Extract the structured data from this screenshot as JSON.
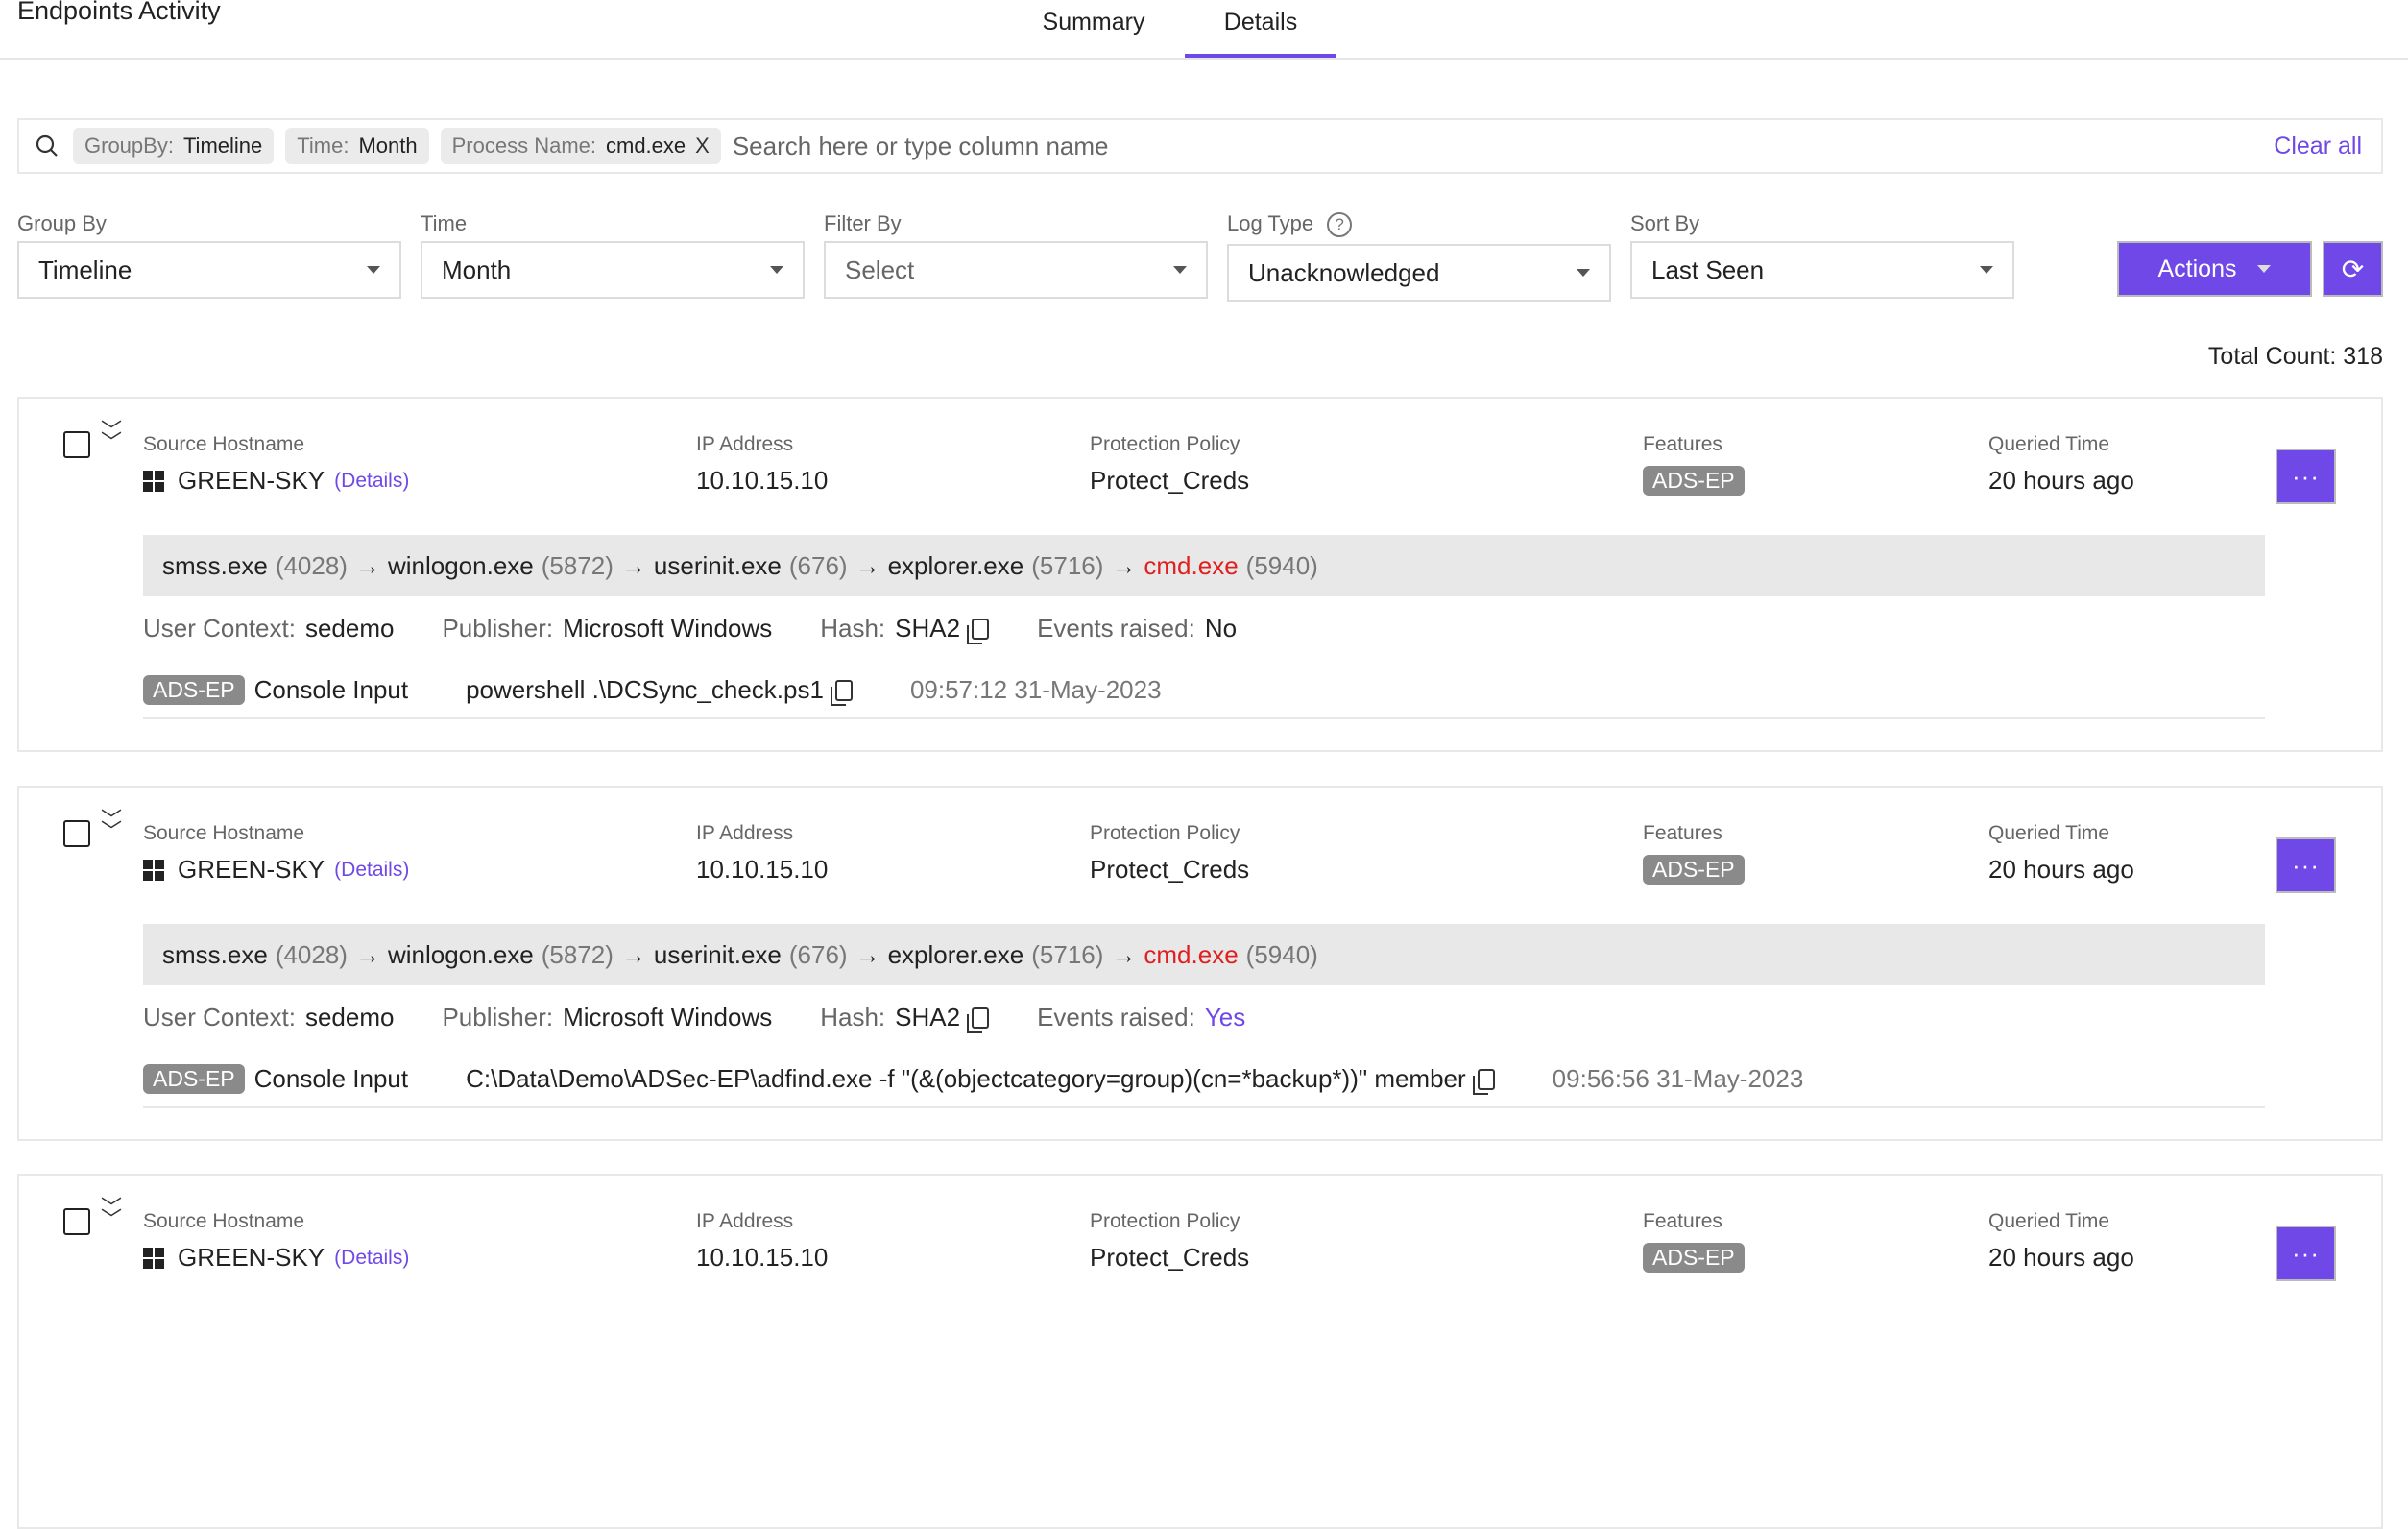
{
  "header": {
    "title": "Endpoints Activity",
    "tabs": [
      {
        "label": "Summary",
        "active": false
      },
      {
        "label": "Details",
        "active": true
      }
    ]
  },
  "search": {
    "chips": [
      {
        "key": "GroupBy:",
        "value": "Timeline"
      },
      {
        "key": "Time:",
        "value": "Month"
      },
      {
        "key": "Process Name:",
        "value": "cmd.exe",
        "removable": true
      }
    ],
    "placeholder": "Search here or type column name",
    "clear_label": "Clear all",
    "remove_glyph": "X"
  },
  "filters": [
    {
      "label": "Group By",
      "value": "Timeline"
    },
    {
      "label": "Time",
      "value": "Month"
    },
    {
      "label": "Filter By",
      "value": "Select"
    },
    {
      "label": "Log Type",
      "value": "Unacknowledged",
      "help": "?"
    },
    {
      "label": "Sort By",
      "value": "Last Seen"
    }
  ],
  "toolbar": {
    "actions_label": "Actions",
    "refresh_icon": "refresh-icon",
    "refresh_glyph": "⟳"
  },
  "total_count": "Total Count: 318",
  "accent": "#7048e8",
  "columns": {
    "hostname": "Source Hostname",
    "ip": "IP Address",
    "policy": "Protection Policy",
    "features": "Features",
    "queried": "Queried Time",
    "details_link": "(Details)",
    "more": "···"
  },
  "detail_labels": {
    "user": "User Context:",
    "publisher": "Publisher:",
    "hash": "Hash:",
    "events": "Events raised:"
  },
  "cards": [
    {
      "hostname": "GREEN-SKY",
      "ip": "10.10.15.10",
      "policy": "Protect_Creds",
      "feature": "ADS-EP",
      "queried": "20 hours ago",
      "chain": [
        {
          "name": "smss.exe",
          "pid": "(4028)"
        },
        {
          "name": "winlogon.exe",
          "pid": "(5872)"
        },
        {
          "name": "userinit.exe",
          "pid": "(676)"
        },
        {
          "name": "explorer.exe",
          "pid": "(5716)"
        },
        {
          "name": "cmd.exe",
          "pid": "(5940)"
        }
      ],
      "arrow": "→",
      "user": "sedemo",
      "publisher": "Microsoft Windows",
      "hash": "SHA2",
      "events": "No",
      "events_is_link": false,
      "event_badge": "ADS-EP",
      "event_type": "Console Input",
      "command": "powershell .\\DCSync_check.ps1",
      "timestamp": "09:57:12 31-May-2023"
    },
    {
      "hostname": "GREEN-SKY",
      "ip": "10.10.15.10",
      "policy": "Protect_Creds",
      "feature": "ADS-EP",
      "queried": "20 hours ago",
      "chain": [
        {
          "name": "smss.exe",
          "pid": "(4028)"
        },
        {
          "name": "winlogon.exe",
          "pid": "(5872)"
        },
        {
          "name": "userinit.exe",
          "pid": "(676)"
        },
        {
          "name": "explorer.exe",
          "pid": "(5716)"
        },
        {
          "name": "cmd.exe",
          "pid": "(5940)"
        }
      ],
      "arrow": "→",
      "user": "sedemo",
      "publisher": "Microsoft Windows",
      "hash": "SHA2",
      "events": "Yes",
      "events_is_link": true,
      "event_badge": "ADS-EP",
      "event_type": "Console Input",
      "command": "C:\\Data\\Demo\\ADSec-EP\\adfind.exe -f \"(&(objectcategory=group)(cn=*backup*))\" member",
      "timestamp": "09:56:56 31-May-2023"
    },
    {
      "hostname": "GREEN-SKY",
      "ip": "10.10.15.10",
      "policy": "Protect_Creds",
      "feature": "ADS-EP",
      "queried": "20 hours ago"
    }
  ]
}
